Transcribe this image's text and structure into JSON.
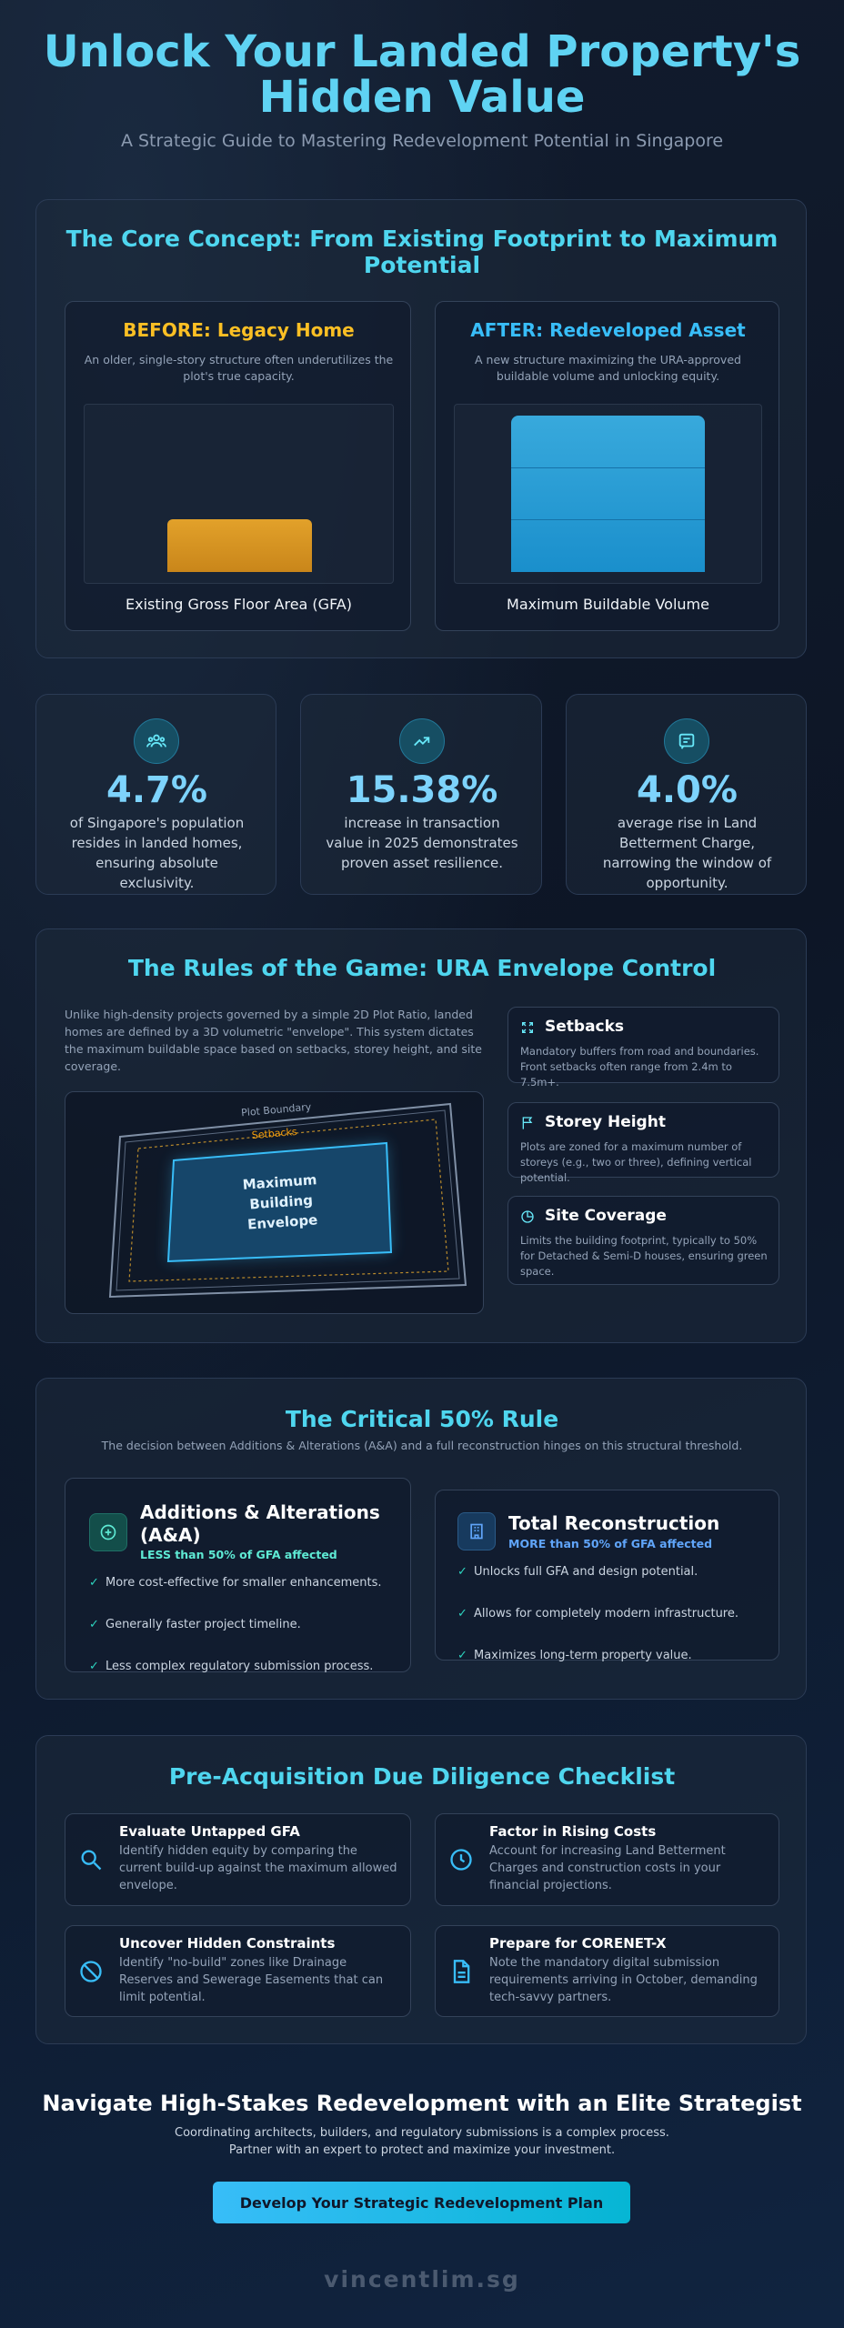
{
  "header": {
    "title": "Unlock Your Landed Property's Hidden Value",
    "subtitle": "A Strategic Guide to Mastering Redevelopment Potential in Singapore"
  },
  "core": {
    "title": "The Core Concept: From Existing Footprint to Maximum Potential",
    "before": {
      "title": "BEFORE: Legacy Home",
      "description": "An older, single-story structure often underutilizes the plot's true capacity.",
      "label": "Existing Gross Floor Area (GFA)"
    },
    "after": {
      "title": "AFTER: Redeveloped Asset",
      "description": "A new structure maximizing the URA-approved buildable volume and unlocking equity.",
      "label": "Maximum Buildable Volume"
    }
  },
  "stats": [
    {
      "value": "4.7%",
      "text": "of Singapore's population resides in landed homes, ensuring absolute exclusivity."
    },
    {
      "value": "15.38%",
      "text": "increase in transaction value in 2025 demonstrates proven asset resilience."
    },
    {
      "value": "4.0%",
      "text": "average rise in Land Betterment Charge, narrowing the window of opportunity."
    }
  ],
  "rules": {
    "title": "The Rules of the Game: URA Envelope Control",
    "intro": "Unlike high-density projects governed by a simple 2D Plot Ratio, landed homes are defined by a 3D volumetric \"envelope\". This system dictates the maximum buildable space based on setbacks, storey height, and site coverage.",
    "diagram": {
      "boundary": "Plot Boundary",
      "setbacks": "Setbacks",
      "envelope": "Maximum Building Envelope"
    },
    "items": [
      {
        "title": "Setbacks",
        "text": "Mandatory buffers from road and boundaries. Front setbacks often range from 2.4m to 7.5m+."
      },
      {
        "title": "Storey Height",
        "text": "Plots are zoned for a maximum number of storeys (e.g., two or three), defining vertical potential."
      },
      {
        "title": "Site Coverage",
        "text": "Limits the building footprint, typically to 50% for Detached & Semi-D houses, ensuring green space."
      }
    ]
  },
  "critical": {
    "title": "The Critical 50% Rule",
    "subtitle": "The decision between Additions & Alterations (A&A) and a full reconstruction hinges on this structural threshold.",
    "options": [
      {
        "title": "Additions & Alterations (A&A)",
        "tag": "LESS than 50% of GFA affected",
        "points": [
          "More cost-effective for smaller enhancements.",
          "Generally faster project timeline.",
          "Less complex regulatory submission process."
        ]
      },
      {
        "title": "Total Reconstruction",
        "tag": "MORE than 50% of GFA affected",
        "points": [
          "Unlocks full GFA and design potential.",
          "Allows for completely modern infrastructure.",
          "Maximizes long-term property value."
        ]
      }
    ]
  },
  "checklist": {
    "title": "Pre-Acquisition Due Diligence Checklist",
    "items": [
      {
        "title": "Evaluate Untapped GFA",
        "text": "Identify hidden equity by comparing the current build-up against the maximum allowed envelope."
      },
      {
        "title": "Factor in Rising Costs",
        "text": "Account for increasing Land Betterment Charges and construction costs in your financial projections."
      },
      {
        "title": "Uncover Hidden Constraints",
        "text": "Identify \"no-build\" zones like Drainage Reserves and Sewerage Easements that can limit potential."
      },
      {
        "title": "Prepare for CORENET-X",
        "text": "Note the mandatory digital submission requirements arriving in October, demanding tech-savvy partners."
      }
    ]
  },
  "cta": {
    "title": "Navigate High-Stakes Redevelopment with an Elite Strategist",
    "text": "Coordinating architects, builders, and regulatory submissions is a complex process. Partner with an expert to protect and maximize your investment.",
    "button": "Develop Your Strategic Redevelopment Plan"
  },
  "footer": {
    "brand": "vincentlim.sg"
  }
}
